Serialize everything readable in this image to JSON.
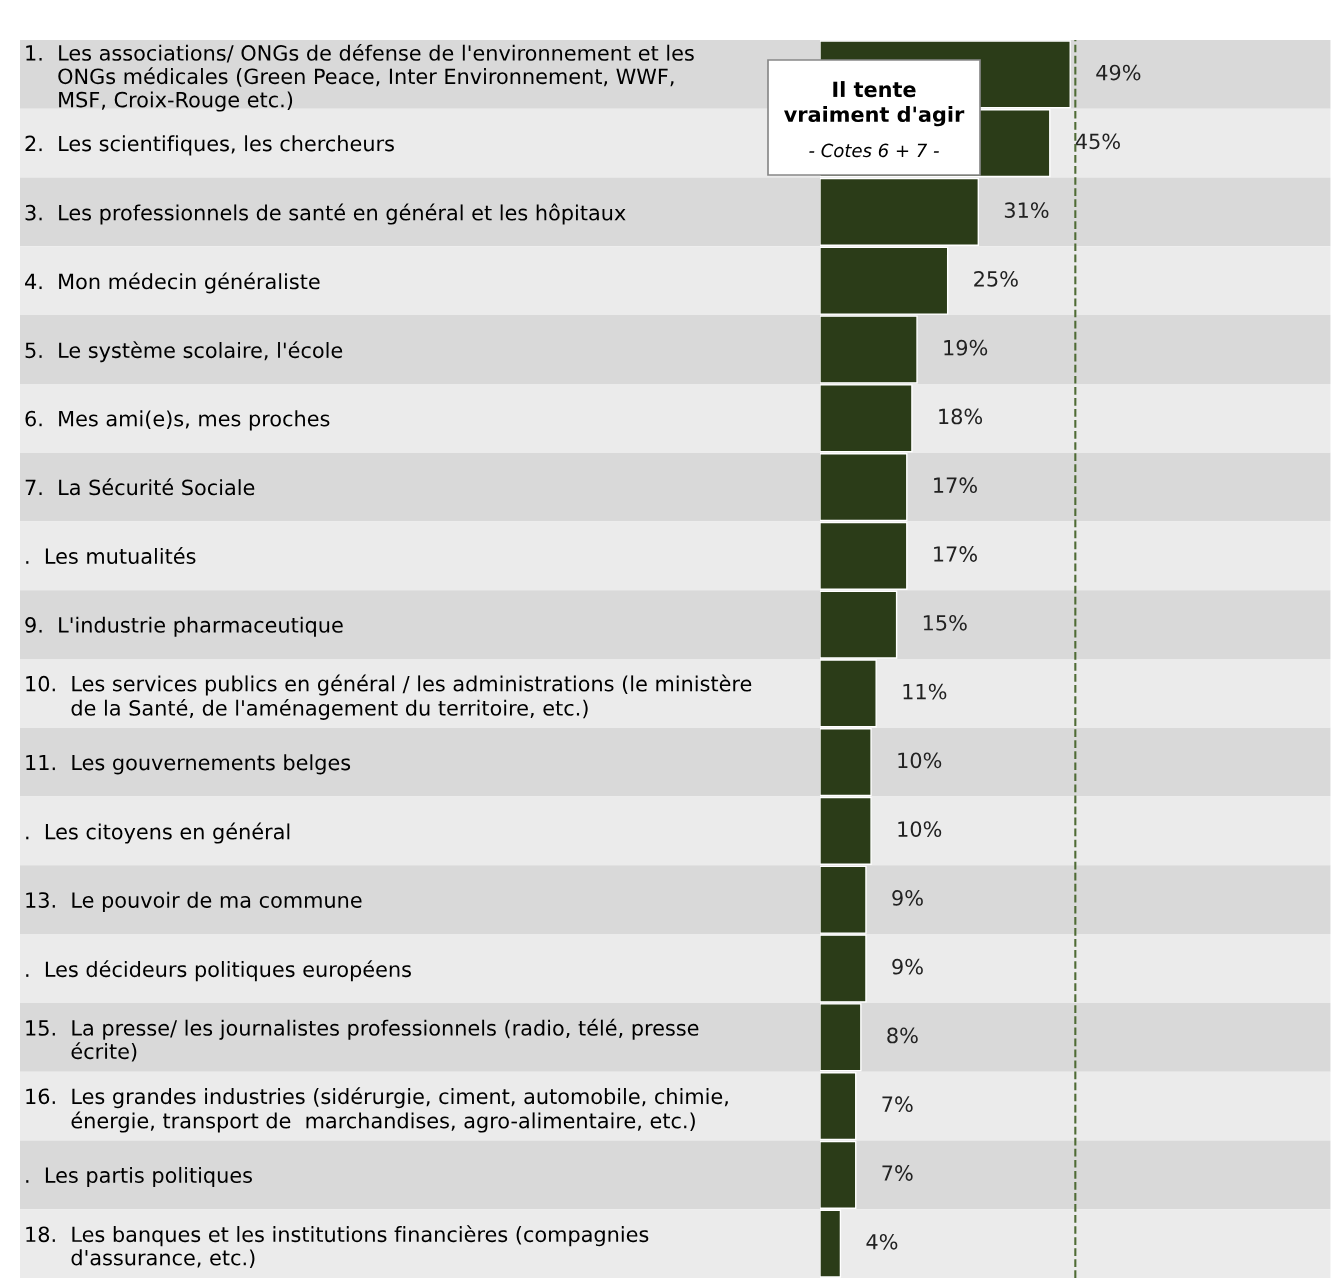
{
  "chart_data": {
    "type": "bar",
    "orientation": "horizontal",
    "categories": [
      "1.  Les associations/ ONGs de défense de l'environnement et les\n     ONGs médicales (Green Peace, Inter Environnement, WWF,\n     MSF, Croix-Rouge etc.)",
      "2.  Les scientifiques, les chercheurs",
      "3.  Les professionnels de santé en général et les hôpitaux",
      "4.  Mon médecin généraliste",
      "5.  Le système scolaire, l'école",
      "6.  Mes ami(e)s, mes proches",
      "7.  La Sécurité Sociale",
      ".  Les mutualités",
      "9.  L'industrie pharmaceutique",
      "10.  Les services publics en général / les administrations (le ministère\n       de la Santé, de l'aménagement du territoire, etc.)",
      "11.  Les gouvernements belges",
      ".  Les citoyens en général",
      "13.  Le pouvoir de ma commune",
      ".  Les décideurs politiques européens",
      "15.  La presse/ les journalistes professionnels (radio, télé, presse\n       écrite)",
      "16.  Les grandes industries (sidérurgie, ciment, automobile, chimie,\n       énergie, transport de  marchandises, agro-alimentaire, etc.)",
      ".  Les partis politiques",
      "18.  Les banques et les institutions financières (compagnies\n       d'assurance, etc.)"
    ],
    "values": [
      49,
      45,
      31,
      25,
      19,
      18,
      17,
      17,
      15,
      11,
      10,
      10,
      9,
      9,
      8,
      7,
      7,
      4
    ],
    "color": "#2b3c18",
    "value_labels": [
      "49%",
      "45%",
      "31%",
      "25%",
      "19%",
      "18%",
      "17%",
      "17%",
      "15%",
      "11%",
      "10%",
      "10%",
      "9%",
      "9%",
      "8%",
      "7%",
      "7%",
      "4%"
    ],
    "ref_lines": [
      {
        "axis": "x",
        "value": 50,
        "color": "#4f6b35",
        "line_style": "dashed"
      }
    ],
    "annotations": [
      "Il tente\nvraiment d'agir",
      "- Cotes 6 + 7 -"
    ],
    "grid": false,
    "legend": false
  }
}
